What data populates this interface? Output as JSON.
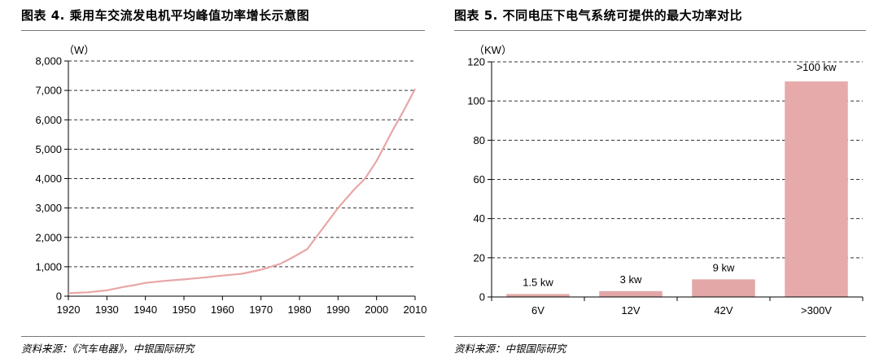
{
  "figures": [
    {
      "title": "图表 4. 乘用车交流发电机平均峰值功率增长示意图",
      "source": "资料来源：《汽车电器》，中银国际研究"
    },
    {
      "title": "图表 5. 不同电压下电气系统可提供的最大功率对比",
      "source": "资料来源：中银国际研究"
    }
  ],
  "chart_data": [
    {
      "type": "line",
      "title": "图表 4. 乘用车交流发电机平均峰值功率增长示意图",
      "ylabel": "（W）",
      "xlabel": "",
      "xlim": [
        1920,
        2010
      ],
      "ylim": [
        0,
        8000
      ],
      "x_ticks": [
        1920,
        1930,
        1940,
        1950,
        1960,
        1970,
        1980,
        1990,
        2000,
        2010
      ],
      "y_ticks": [
        0,
        1000,
        2000,
        3000,
        4000,
        5000,
        6000,
        7000,
        8000
      ],
      "x_tick_labels": [
        "1920",
        "1930",
        "1940",
        "1950",
        "1960",
        "1970",
        "1980",
        "1990",
        "2000",
        "2010"
      ],
      "y_tick_labels": [
        "0",
        "1,000",
        "2,000",
        "3,000",
        "4,000",
        "5,000",
        "6,000",
        "7,000",
        "8,000"
      ],
      "grid": "horizontal-dashed",
      "line_color": "#e8a6a6",
      "series": [
        {
          "x": [
            1920,
            1925,
            1930,
            1935,
            1937,
            1940,
            1945,
            1950,
            1955,
            1960,
            1965,
            1970,
            1975,
            1978,
            1982,
            1986,
            1990,
            1994,
            1997,
            2000,
            2004,
            2007,
            2010
          ],
          "y": [
            100,
            130,
            200,
            330,
            370,
            450,
            520,
            570,
            630,
            700,
            760,
            900,
            1100,
            1300,
            1600,
            2300,
            3000,
            3600,
            4000,
            4600,
            5600,
            6300,
            7050
          ]
        }
      ]
    },
    {
      "type": "bar",
      "title": "图表 5. 不同电压下电气系统可提供的最大功率对比",
      "ylabel": "（KW）",
      "xlabel": "",
      "ylim": [
        0,
        120
      ],
      "y_ticks": [
        0,
        20,
        40,
        60,
        80,
        100,
        120
      ],
      "y_tick_labels": [
        "0",
        "20",
        "40",
        "60",
        "80",
        "100",
        "120"
      ],
      "grid": "horizontal-dashed",
      "categories": [
        "6V",
        "12V",
        "42V",
        ">300V"
      ],
      "values": [
        1.5,
        3,
        9,
        110
      ],
      "data_labels": [
        "1.5 kw",
        "3 kw",
        "9 kw",
        ">100 kw"
      ],
      "bar_colors": [
        "#e3a7a7",
        "#e3a7a7",
        "#e3a7a7",
        "#e7aaab"
      ]
    }
  ]
}
